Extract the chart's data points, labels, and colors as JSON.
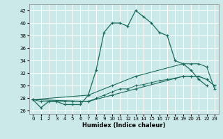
{
  "xlabel": "Humidex (Indice chaleur)",
  "xlim": [
    -0.5,
    23.5
  ],
  "ylim": [
    25.5,
    43
  ],
  "yticks": [
    26,
    28,
    30,
    32,
    34,
    36,
    38,
    40,
    42
  ],
  "xticks": [
    0,
    1,
    2,
    3,
    4,
    5,
    6,
    7,
    8,
    9,
    10,
    11,
    12,
    13,
    14,
    15,
    16,
    17,
    18,
    19,
    20,
    21,
    22,
    23
  ],
  "bg_color": "#cce9e9",
  "grid_color": "#ffffff",
  "line_color": "#1a6b5a",
  "line1_x": [
    0,
    1,
    2,
    3,
    4,
    5,
    6,
    7,
    8,
    9,
    10,
    11,
    12,
    13,
    14,
    15,
    16,
    17,
    18,
    19,
    20,
    21,
    22
  ],
  "line1_y": [
    27.8,
    26.5,
    27.5,
    27.5,
    27.0,
    27.0,
    27.0,
    28.5,
    32.5,
    38.5,
    40.0,
    40.0,
    39.5,
    42.0,
    41.0,
    40.0,
    38.5,
    38.0,
    34.0,
    33.5,
    32.5,
    31.0,
    30.0
  ],
  "line2_x": [
    0,
    1,
    2,
    3,
    4,
    5,
    6,
    7,
    8,
    9,
    10,
    11,
    12,
    13,
    14,
    15,
    16,
    17,
    18,
    19,
    20,
    21,
    22,
    23
  ],
  "line2_y": [
    27.8,
    27.5,
    27.5,
    27.5,
    27.5,
    27.5,
    27.5,
    27.5,
    28.0,
    28.5,
    29.0,
    29.5,
    29.5,
    30.0,
    30.2,
    30.5,
    30.8,
    31.0,
    31.2,
    31.5,
    31.5,
    31.5,
    31.0,
    30.0
  ],
  "line3_x": [
    0,
    7,
    10,
    13,
    19,
    20,
    21,
    22,
    23
  ],
  "line3_y": [
    27.8,
    28.5,
    30.0,
    31.5,
    33.5,
    33.5,
    33.5,
    33.0,
    29.5
  ],
  "line4_x": [
    0,
    7,
    10,
    13,
    19,
    20,
    21,
    22,
    23
  ],
  "line4_y": [
    27.8,
    27.5,
    28.5,
    29.5,
    31.5,
    31.5,
    31.5,
    31.0,
    30.0
  ]
}
